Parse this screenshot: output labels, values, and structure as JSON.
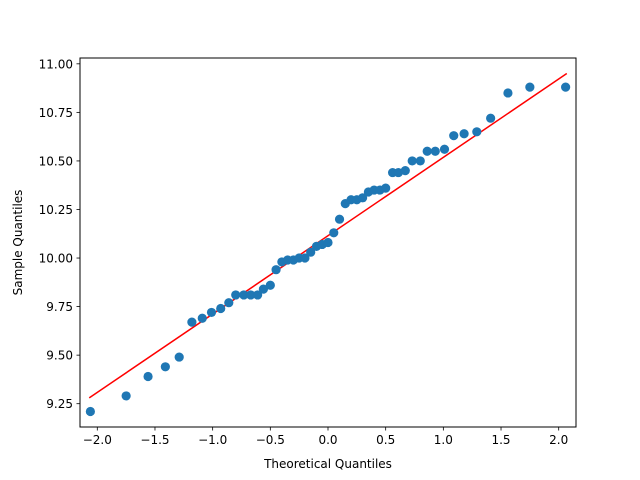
{
  "chart_data": {
    "type": "scatter",
    "title": "",
    "xlabel": "Theoretical Quantiles",
    "ylabel": "Sample Quantiles",
    "xlim": [
      -2.15,
      2.15
    ],
    "ylim": [
      9.13,
      11.03
    ],
    "x_ticks": [
      -2.0,
      -1.5,
      -1.0,
      -0.5,
      0.0,
      0.5,
      1.0,
      1.5,
      2.0
    ],
    "x_tick_labels": [
      "−2.0",
      "−1.5",
      "−1.0",
      "−0.5",
      "0.0",
      "0.5",
      "1.0",
      "1.5",
      "2.0"
    ],
    "y_ticks": [
      9.25,
      9.5,
      9.75,
      10.0,
      10.25,
      10.5,
      10.75,
      11.0
    ],
    "y_tick_labels": [
      "9.25",
      "9.50",
      "9.75",
      "10.00",
      "10.25",
      "10.50",
      "10.75",
      "11.00"
    ],
    "grid": false,
    "colors": {
      "points": "#1f77b4",
      "line": "#ff0000"
    },
    "points": {
      "x": [
        -2.06,
        -1.75,
        -1.56,
        -1.41,
        -1.29,
        -1.18,
        -1.09,
        -1.01,
        -0.93,
        -0.86,
        -0.8,
        -0.73,
        -0.67,
        -0.61,
        -0.56,
        -0.5,
        -0.45,
        -0.4,
        -0.35,
        -0.3,
        -0.25,
        -0.2,
        -0.15,
        -0.1,
        -0.05,
        0.0,
        0.05,
        0.1,
        0.15,
        0.2,
        0.25,
        0.3,
        0.35,
        0.4,
        0.45,
        0.5,
        0.56,
        0.61,
        0.67,
        0.73,
        0.8,
        0.86,
        0.93,
        1.01,
        1.09,
        1.18,
        1.29,
        1.41,
        1.56,
        1.75,
        2.06
      ],
      "y": [
        9.21,
        9.29,
        9.39,
        9.44,
        9.49,
        9.67,
        9.69,
        9.72,
        9.74,
        9.77,
        9.81,
        9.81,
        9.81,
        9.81,
        9.84,
        9.86,
        9.94,
        9.98,
        9.99,
        9.99,
        10.0,
        10.0,
        10.03,
        10.06,
        10.07,
        10.08,
        10.13,
        10.2,
        10.28,
        10.3,
        10.3,
        10.31,
        10.34,
        10.35,
        10.35,
        10.36,
        10.44,
        10.44,
        10.45,
        10.5,
        10.5,
        10.55,
        10.55,
        10.56,
        10.63,
        10.64,
        10.65,
        10.72,
        10.85,
        10.88,
        10.88
      ]
    },
    "reference_line": {
      "x": [
        -2.07,
        2.07
      ],
      "y": [
        9.28,
        10.95
      ]
    }
  }
}
